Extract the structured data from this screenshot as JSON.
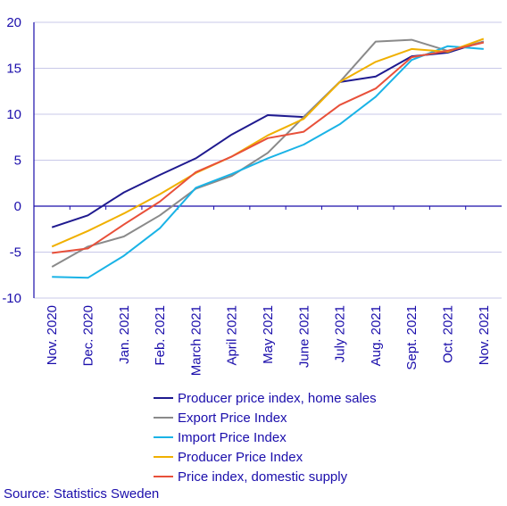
{
  "chart_data": {
    "type": "line",
    "x": [
      "Nov. 2020",
      "Dec. 2020",
      "Jan. 2021",
      "Feb. 2021",
      "March 2021",
      "April 2021",
      "May 2021",
      "June 2021",
      "July 2021",
      "Aug. 2021",
      "Sept. 2021",
      "Oct. 2021",
      "Nov. 2021"
    ],
    "ylim": [
      -10,
      20
    ],
    "yticks": [
      -10,
      -5,
      0,
      5,
      10,
      15,
      20
    ],
    "grid": true,
    "legend_position": "bottom",
    "series": [
      {
        "name": "Producer price index, home sales",
        "color": "#1f1a8f",
        "values": [
          -2.3,
          -1.0,
          1.5,
          3.4,
          5.2,
          7.8,
          9.9,
          9.7,
          13.5,
          14.1,
          16.3,
          16.7,
          17.9
        ]
      },
      {
        "name": "Export Price Index",
        "color": "#8a8a8a",
        "values": [
          -6.6,
          -4.4,
          -3.3,
          -1.0,
          1.9,
          3.3,
          5.8,
          9.7,
          13.5,
          17.9,
          18.1,
          16.9,
          17.9
        ]
      },
      {
        "name": "Import Price Index",
        "color": "#1ab3e6",
        "values": [
          -7.7,
          -7.8,
          -5.4,
          -2.4,
          2.0,
          3.5,
          5.2,
          6.7,
          8.9,
          11.9,
          15.9,
          17.4,
          17.1
        ]
      },
      {
        "name": "Producer Price Index",
        "color": "#f0b000",
        "values": [
          -4.4,
          -2.7,
          -0.8,
          1.3,
          3.6,
          5.4,
          7.7,
          9.5,
          13.5,
          15.7,
          17.1,
          16.8,
          18.2
        ]
      },
      {
        "name": "Price index, domestic supply",
        "color": "#e8503a",
        "values": [
          -5.1,
          -4.6,
          -2.0,
          0.5,
          3.7,
          5.4,
          7.4,
          8.1,
          11.0,
          12.8,
          16.2,
          16.9,
          17.8
        ]
      }
    ],
    "source": "Source: Statistics Sweden"
  }
}
